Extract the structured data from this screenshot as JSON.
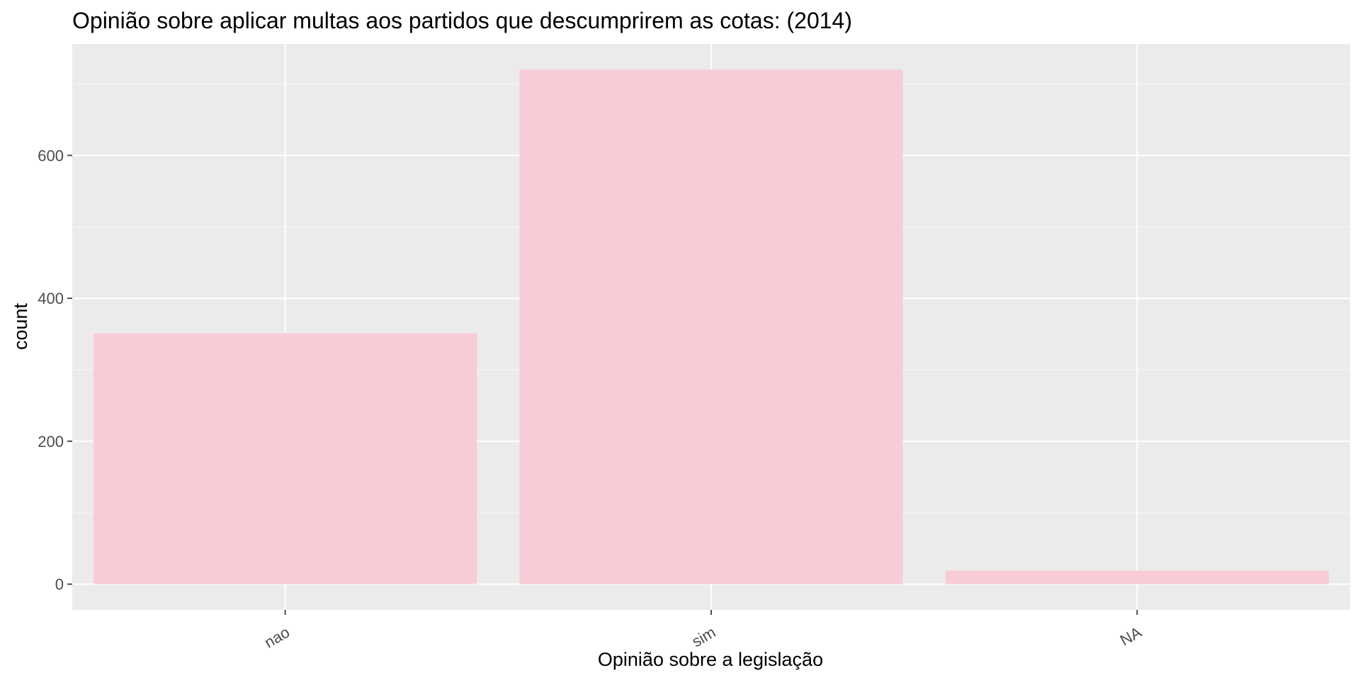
{
  "chart_data": {
    "type": "bar",
    "title": "Opinião sobre aplicar multas aos partidos que descumprirem as cotas: (2014)",
    "xlabel": "Opinião sobre a legislação",
    "ylabel": "count",
    "categories": [
      "nao",
      "sim",
      "NA"
    ],
    "values": [
      351,
      720,
      19
    ],
    "ylim": [
      -36,
      756
    ],
    "yticks": [
      0,
      200,
      400,
      600
    ],
    "ytick_labels": [
      "0",
      "200",
      "400",
      "600"
    ],
    "grid": true,
    "legend": "none",
    "colors": {
      "bar": "#f8ccd6",
      "panel": "#ebebeb",
      "grid_major": "#ffffff",
      "grid_minor": "#f5f5f5",
      "tick": "#4d4d4d"
    }
  }
}
